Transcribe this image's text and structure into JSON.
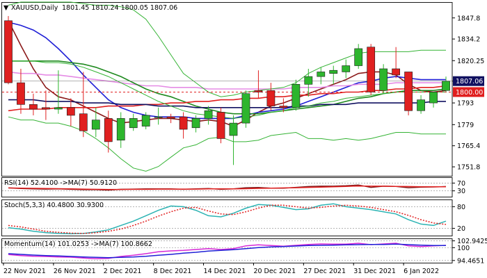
{
  "header": {
    "symbol": "XAUUSD,Daily",
    "ohlc": "1801.45 1810.24 1800.05 1807.06"
  },
  "colors": {
    "bull": "#2db52d",
    "bear": "#e02020",
    "sma_fast": "#8b1a1a",
    "ema_blue": "#1f1fd6",
    "ma_pink": "#e58be5",
    "ma_green": "#1f8a1f",
    "ma_red": "#e01f1f",
    "ma_navy": "#101060",
    "bollinger": "#34b334",
    "price_tag_bg": "#101060",
    "ref_tag_bg": "#e01f1f",
    "rsi_line": "#7a1a1a",
    "rsi_ma": "#e01f1f",
    "stoch_main": "#2bb3b3",
    "stoch_signal": "#e01f1f",
    "mom_line": "#d628d6",
    "mom_ma": "#1f1fd6"
  },
  "chart_data": {
    "type": "candlestick",
    "symbol": "XAUUSD",
    "timeframe": "Daily",
    "ylim": [
      1746,
      1858
    ],
    "y_ticks": [
      1847.8,
      1834.2,
      1820.25,
      1807.06,
      1793.0,
      1779.0,
      1765.4,
      1751.8
    ],
    "current_price": "1807.06",
    "reference_level": "1800.00",
    "x_labels": [
      "22 Nov 2021",
      "26 Nov 2021",
      "2 Dec 2021",
      "8 Dec 2021",
      "14 Dec 2021",
      "20 Dec 2021",
      "27 Dec 2021",
      "31 Dec 2021",
      "6 Jan 2022"
    ],
    "candles": [
      {
        "o": 1846,
        "h": 1849,
        "l": 1805,
        "c": 1806
      },
      {
        "o": 1806,
        "h": 1815,
        "l": 1786,
        "c": 1792
      },
      {
        "o": 1792,
        "h": 1799,
        "l": 1785,
        "c": 1789
      },
      {
        "o": 1790,
        "h": 1801,
        "l": 1782,
        "c": 1789
      },
      {
        "o": 1789,
        "h": 1814,
        "l": 1786,
        "c": 1790
      },
      {
        "o": 1790,
        "h": 1796,
        "l": 1778,
        "c": 1785
      },
      {
        "o": 1786,
        "h": 1813,
        "l": 1771,
        "c": 1775
      },
      {
        "o": 1776,
        "h": 1790,
        "l": 1771,
        "c": 1782
      },
      {
        "o": 1783,
        "h": 1788,
        "l": 1761,
        "c": 1768
      },
      {
        "o": 1769,
        "h": 1787,
        "l": 1764,
        "c": 1783
      },
      {
        "o": 1777,
        "h": 1786,
        "l": 1775,
        "c": 1783
      },
      {
        "o": 1778,
        "h": 1787,
        "l": 1776,
        "c": 1785
      },
      {
        "o": 1784,
        "h": 1790,
        "l": 1779,
        "c": 1784
      },
      {
        "o": 1784,
        "h": 1786,
        "l": 1780,
        "c": 1783
      },
      {
        "o": 1784,
        "h": 1787,
        "l": 1770,
        "c": 1776
      },
      {
        "o": 1777,
        "h": 1785,
        "l": 1774,
        "c": 1783
      },
      {
        "o": 1783,
        "h": 1791,
        "l": 1779,
        "c": 1788
      },
      {
        "o": 1787,
        "h": 1790,
        "l": 1767,
        "c": 1770
      },
      {
        "o": 1772,
        "h": 1785,
        "l": 1753,
        "c": 1780
      },
      {
        "o": 1780,
        "h": 1801,
        "l": 1777,
        "c": 1799
      },
      {
        "o": 1801,
        "h": 1814,
        "l": 1796,
        "c": 1800
      },
      {
        "o": 1801,
        "h": 1806,
        "l": 1788,
        "c": 1791
      },
      {
        "o": 1791,
        "h": 1796,
        "l": 1787,
        "c": 1790
      },
      {
        "o": 1790,
        "h": 1808,
        "l": 1788,
        "c": 1805
      },
      {
        "o": 1805,
        "h": 1815,
        "l": 1797,
        "c": 1810
      },
      {
        "o": 1810,
        "h": 1816,
        "l": 1805,
        "c": 1813
      },
      {
        "o": 1812,
        "h": 1817,
        "l": 1805,
        "c": 1814
      },
      {
        "o": 1813,
        "h": 1821,
        "l": 1809,
        "c": 1817
      },
      {
        "o": 1817,
        "h": 1831,
        "l": 1815,
        "c": 1828
      },
      {
        "o": 1829,
        "h": 1831,
        "l": 1798,
        "c": 1800
      },
      {
        "o": 1801,
        "h": 1818,
        "l": 1799,
        "c": 1815
      },
      {
        "o": 1815,
        "h": 1829,
        "l": 1809,
        "c": 1811
      },
      {
        "o": 1813,
        "h": 1813,
        "l": 1785,
        "c": 1788
      },
      {
        "o": 1788,
        "h": 1798,
        "l": 1786,
        "c": 1795
      },
      {
        "o": 1793,
        "h": 1800,
        "l": 1790,
        "c": 1800
      },
      {
        "o": 1801,
        "h": 1810,
        "l": 1800,
        "c": 1807
      }
    ],
    "overlays": [
      {
        "color": "sma_fast",
        "values": [
          1846,
          1830,
          1815,
          1803,
          1797,
          1795,
          1791,
          1787,
          1783,
          1780,
          1781,
          1782,
          1783,
          1783,
          1782,
          1781,
          1782,
          1781,
          1778,
          1782,
          1787,
          1791,
          1793,
          1796,
          1799,
          1802,
          1805,
          1808,
          1812,
          1813,
          1813,
          1811,
          1805,
          1801,
          1800,
          1801
        ]
      },
      {
        "color": "ema_blue",
        "values": [
          1845,
          1843,
          1840,
          1835,
          1828,
          1820,
          1811,
          1803,
          1795,
          1790,
          1787,
          1785,
          1784,
          1784,
          1784,
          1783,
          1783,
          1783,
          1783,
          1785,
          1787,
          1788,
          1789,
          1791,
          1794,
          1797,
          1800,
          1803,
          1806,
          1807,
          1809,
          1810,
          1809,
          1808,
          1808,
          1808
        ]
      },
      {
        "color": "ma_pink",
        "values": [
          1813,
          1812,
          1812,
          1811,
          1811,
          1810,
          1809,
          1808,
          1807,
          1806,
          1805,
          1804,
          1804,
          1803,
          1803,
          1803,
          1802,
          1802,
          1802,
          1802,
          1802,
          1802,
          1802,
          1803,
          1803,
          1803,
          1804,
          1804,
          1805,
          1805,
          1805,
          1806,
          1806,
          1806,
          1806,
          1806
        ]
      },
      {
        "color": "ma_green",
        "values": [
          1820,
          1820,
          1820,
          1820,
          1820,
          1819,
          1818,
          1816,
          1813,
          1810,
          1806,
          1802,
          1799,
          1797,
          1794,
          1791,
          1789,
          1787,
          1786,
          1786,
          1786,
          1787,
          1788,
          1789,
          1790,
          1791,
          1792,
          1794,
          1796,
          1797,
          1799,
          1800,
          1801,
          1801,
          1801,
          1802
        ]
      },
      {
        "color": "ma_red",
        "values": [
          1788,
          1789,
          1789,
          1789,
          1790,
          1790,
          1790,
          1790,
          1791,
          1791,
          1791,
          1792,
          1792,
          1793,
          1793,
          1794,
          1794,
          1795,
          1795,
          1796,
          1796,
          1797,
          1797,
          1798,
          1798,
          1799,
          1799,
          1800,
          1800,
          1801,
          1801,
          1802,
          1802,
          1803,
          1803,
          1804
        ]
      },
      {
        "color": "ma_navy",
        "values": [
          1795,
          1795,
          1795,
          1794,
          1794,
          1794,
          1793,
          1793,
          1793,
          1792,
          1792,
          1792,
          1791,
          1791,
          1791,
          1790,
          1790,
          1790,
          1790,
          1790,
          1790,
          1790,
          1790,
          1791,
          1791,
          1792,
          1792,
          1792,
          1793,
          1793,
          1793,
          1793,
          1793,
          1793,
          1794,
          1794
        ]
      },
      {
        "color": "bollinger",
        "values": [
          1856,
          1858,
          1858,
          1858,
          1858,
          1858,
          1857,
          1856,
          1856,
          1855,
          1853,
          1847,
          1836,
          1824,
          1812,
          1806,
          1800,
          1797,
          1798,
          1800,
          1801,
          1802,
          1803,
          1806,
          1812,
          1816,
          1819,
          1822,
          1825,
          1826,
          1826,
          1826,
          1826,
          1827,
          1827,
          1827
        ]
      },
      {
        "color": "bollinger",
        "values": [
          1820,
          1820,
          1820,
          1819,
          1819,
          1818,
          1816,
          1813,
          1810,
          1806,
          1802,
          1798,
          1794,
          1791,
          1788,
          1786,
          1785,
          1784,
          1783,
          1784,
          1785,
          1787,
          1788,
          1790,
          1791,
          1793,
          1794,
          1796,
          1797,
          1798,
          1799,
          1800,
          1800,
          1800,
          1800,
          1800
        ]
      },
      {
        "color": "bollinger",
        "values": [
          1784,
          1782,
          1782,
          1780,
          1780,
          1778,
          1775,
          1770,
          1764,
          1757,
          1751,
          1749,
          1752,
          1758,
          1764,
          1766,
          1770,
          1771,
          1768,
          1768,
          1769,
          1772,
          1773,
          1774,
          1770,
          1770,
          1769,
          1770,
          1769,
          1770,
          1772,
          1774,
          1774,
          1773,
          1773,
          1773
        ]
      }
    ],
    "indicators": [
      {
        "name": "rsi",
        "label": "RSI(14) 52.4100  ->MA(7) 50.9120",
        "ticks": [
          "70",
          "30"
        ],
        "ylim": [
          0,
          100
        ],
        "tick_values": [
          70,
          30
        ],
        "series": [
          {
            "color": "rsi_line",
            "values": [
              45,
              42,
              40,
              39,
              40,
              38,
              36,
              36,
              34,
              38,
              39,
              40,
              40,
              40,
              38,
              40,
              42,
              38,
              40,
              46,
              47,
              44,
              44,
              48,
              52,
              54,
              54,
              56,
              60,
              48,
              54,
              53,
              46,
              49,
              50,
              52
            ]
          },
          {
            "color": "rsi_ma",
            "values": [
              45,
              44,
              43,
              42,
              41,
              40,
              39,
              38,
              37,
              37,
              38,
              38,
              39,
              39,
              39,
              39,
              40,
              40,
              40,
              41,
              43,
              44,
              45,
              46,
              48,
              49,
              51,
              53,
              55,
              54,
              54,
              53,
              52,
              51,
              51,
              51
            ]
          }
        ]
      },
      {
        "name": "stochastic",
        "label": "Stoch(5,3,3) 40.4800 30.9300",
        "ticks": [
          "80",
          "20"
        ],
        "ylim": [
          0,
          100
        ],
        "tick_values": [
          80,
          20
        ],
        "series": [
          {
            "color": "stoch_main",
            "values": [
              22,
              18,
              12,
              8,
              6,
              5,
              6,
              10,
              16,
              28,
              40,
              55,
              70,
              82,
              80,
              70,
              55,
              52,
              62,
              76,
              86,
              84,
              78,
              72,
              74,
              84,
              88,
              80,
              76,
              72,
              66,
              60,
              44,
              32,
              28,
              40
            ]
          },
          {
            "color": "stoch_signal",
            "values": [
              28,
              24,
              18,
              12,
              9,
              7,
              6,
              8,
              12,
              18,
              28,
              40,
              54,
              66,
              76,
              78,
              68,
              60,
              58,
              66,
              76,
              84,
              84,
              80,
              76,
              78,
              82,
              84,
              82,
              78,
              72,
              66,
              56,
              44,
              35,
              31
            ]
          }
        ]
      },
      {
        "name": "momentum",
        "label": "Momentum(14) 101.0253  ->MA(7) 100.8662",
        "ticks": [
          "102.9425",
          "100",
          "94.4651"
        ],
        "ylim": [
          93.5,
          104
        ],
        "tick_values": [
          102.9425,
          100,
          94.4651
        ],
        "series": [
          {
            "color": "mom_line",
            "values": [
              97.0,
              96.6,
              96.3,
              96.2,
              96.0,
              95.9,
              95.5,
              95.2,
              95.4,
              96.2,
              96.7,
              97.4,
              98.2,
              98.6,
              98.8,
              99.2,
              99.6,
              99.2,
              99.6,
              100.8,
              101.2,
              100.9,
              100.6,
              101.0,
              101.4,
              101.6,
              101.5,
              101.5,
              101.9,
              101.3,
              101.6,
              101.9,
              100.8,
              100.5,
              100.8,
              101.0
            ]
          },
          {
            "color": "mom_ma",
            "values": [
              97.4,
              97.1,
              96.8,
              96.6,
              96.4,
              96.2,
              96.0,
              95.8,
              95.7,
              95.8,
              96.0,
              96.3,
              96.7,
              97.1,
              97.6,
              98.0,
              98.5,
              98.8,
              99.1,
              99.6,
              100.0,
              100.3,
              100.5,
              100.7,
              100.9,
              101.0,
              101.1,
              101.2,
              101.3,
              101.4,
              101.4,
              101.5,
              101.3,
              101.1,
              100.9,
              100.9
            ]
          }
        ]
      }
    ]
  }
}
